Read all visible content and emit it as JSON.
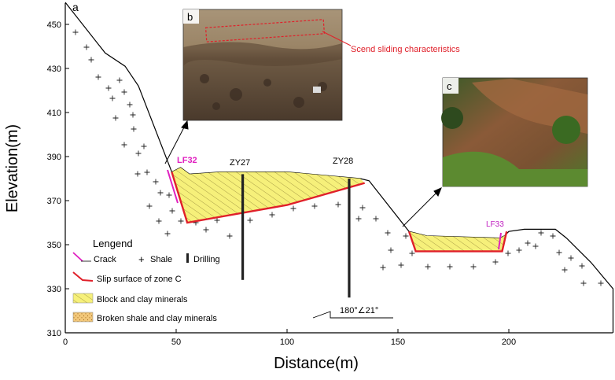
{
  "panel_a_label": "a",
  "panel_b_label": "b",
  "panel_c_label": "c",
  "axes": {
    "xlabel": "Distance(m)",
    "ylabel": "Elevation(m)",
    "xticks": [
      "0",
      "50",
      "100",
      "150",
      "200"
    ],
    "yticks": [
      "310",
      "330",
      "350",
      "370",
      "390",
      "410",
      "430",
      "450"
    ]
  },
  "labels": {
    "crack_left": "LF32",
    "crack_right": "LF33",
    "drill_1": "ZY27",
    "drill_2": "ZY28",
    "orientation": "180°∠21°",
    "photo_b_annotation": "Scend sliding characteristics"
  },
  "legend": {
    "title": "Lengend",
    "crack": "Crack",
    "shale": "Shale",
    "drilling": "Drilling",
    "slip_surface": "Slip surface of zone C",
    "block_clay": "Block and clay minerals",
    "broken_shale": "Broken shale and clay minerals"
  },
  "colors": {
    "slip_surface": "#e0202a",
    "crack": "#e020c0",
    "block_fill": "#f6f07a",
    "broken_fill": "#f2c87a",
    "annotation": "#e0202a",
    "lf33_text": "#c020c0"
  },
  "chart_data": {
    "type": "cross-section",
    "x_range": [
      0,
      247
    ],
    "y_range": [
      310,
      460
    ],
    "ground_profile": [
      [
        0,
        460
      ],
      [
        18,
        437
      ],
      [
        27,
        431
      ],
      [
        33,
        422
      ],
      [
        48,
        383
      ],
      [
        52,
        385
      ],
      [
        56,
        382
      ],
      [
        70,
        383
      ],
      [
        100,
        383
      ],
      [
        133,
        380
      ],
      [
        137,
        379
      ],
      [
        155,
        356
      ],
      [
        163,
        354
      ],
      [
        196,
        353
      ],
      [
        198,
        354
      ],
      [
        200,
        356
      ],
      [
        207,
        357
      ],
      [
        221,
        357
      ],
      [
        226,
        353
      ],
      [
        237,
        342
      ],
      [
        247,
        330
      ],
      [
        247,
        310
      ]
    ],
    "slip_surface_left": [
      [
        48,
        383
      ],
      [
        55,
        360
      ],
      [
        100,
        368
      ],
      [
        135,
        378
      ]
    ],
    "slip_surface_right": [
      [
        155,
        356
      ],
      [
        158,
        347
      ],
      [
        197,
        347
      ],
      [
        199,
        356
      ]
    ],
    "drillholes": [
      {
        "name": "ZY27",
        "x": 80,
        "top": 382,
        "bottom": 334
      },
      {
        "name": "ZY28",
        "x": 128,
        "top": 380,
        "bottom": 326
      }
    ]
  }
}
